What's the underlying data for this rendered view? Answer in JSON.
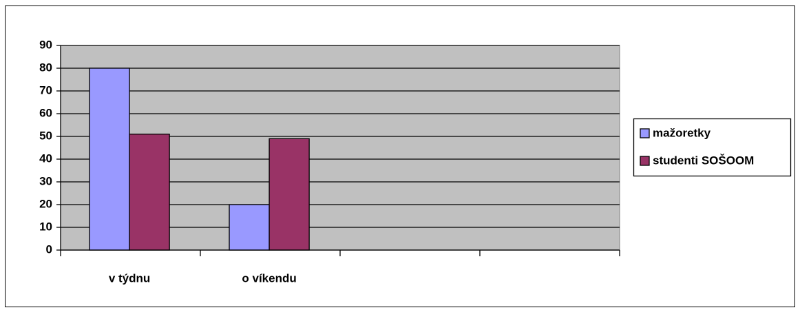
{
  "chart_data": {
    "type": "bar",
    "categories": [
      "v týdnu",
      "o víkendu",
      null,
      null
    ],
    "series": [
      {
        "name": "mažoretky",
        "color": "#9999ff",
        "values": [
          80,
          20,
          null,
          null
        ]
      },
      {
        "name": "studenti SOŠOOM",
        "color": "#993366",
        "values": [
          51,
          49,
          null,
          null
        ]
      }
    ],
    "ylim": [
      0,
      90
    ],
    "yticks": [
      0,
      10,
      20,
      30,
      40,
      50,
      60,
      70,
      80,
      90
    ],
    "grid": true,
    "legend": "right",
    "plot_background": "#c0c0c0"
  }
}
